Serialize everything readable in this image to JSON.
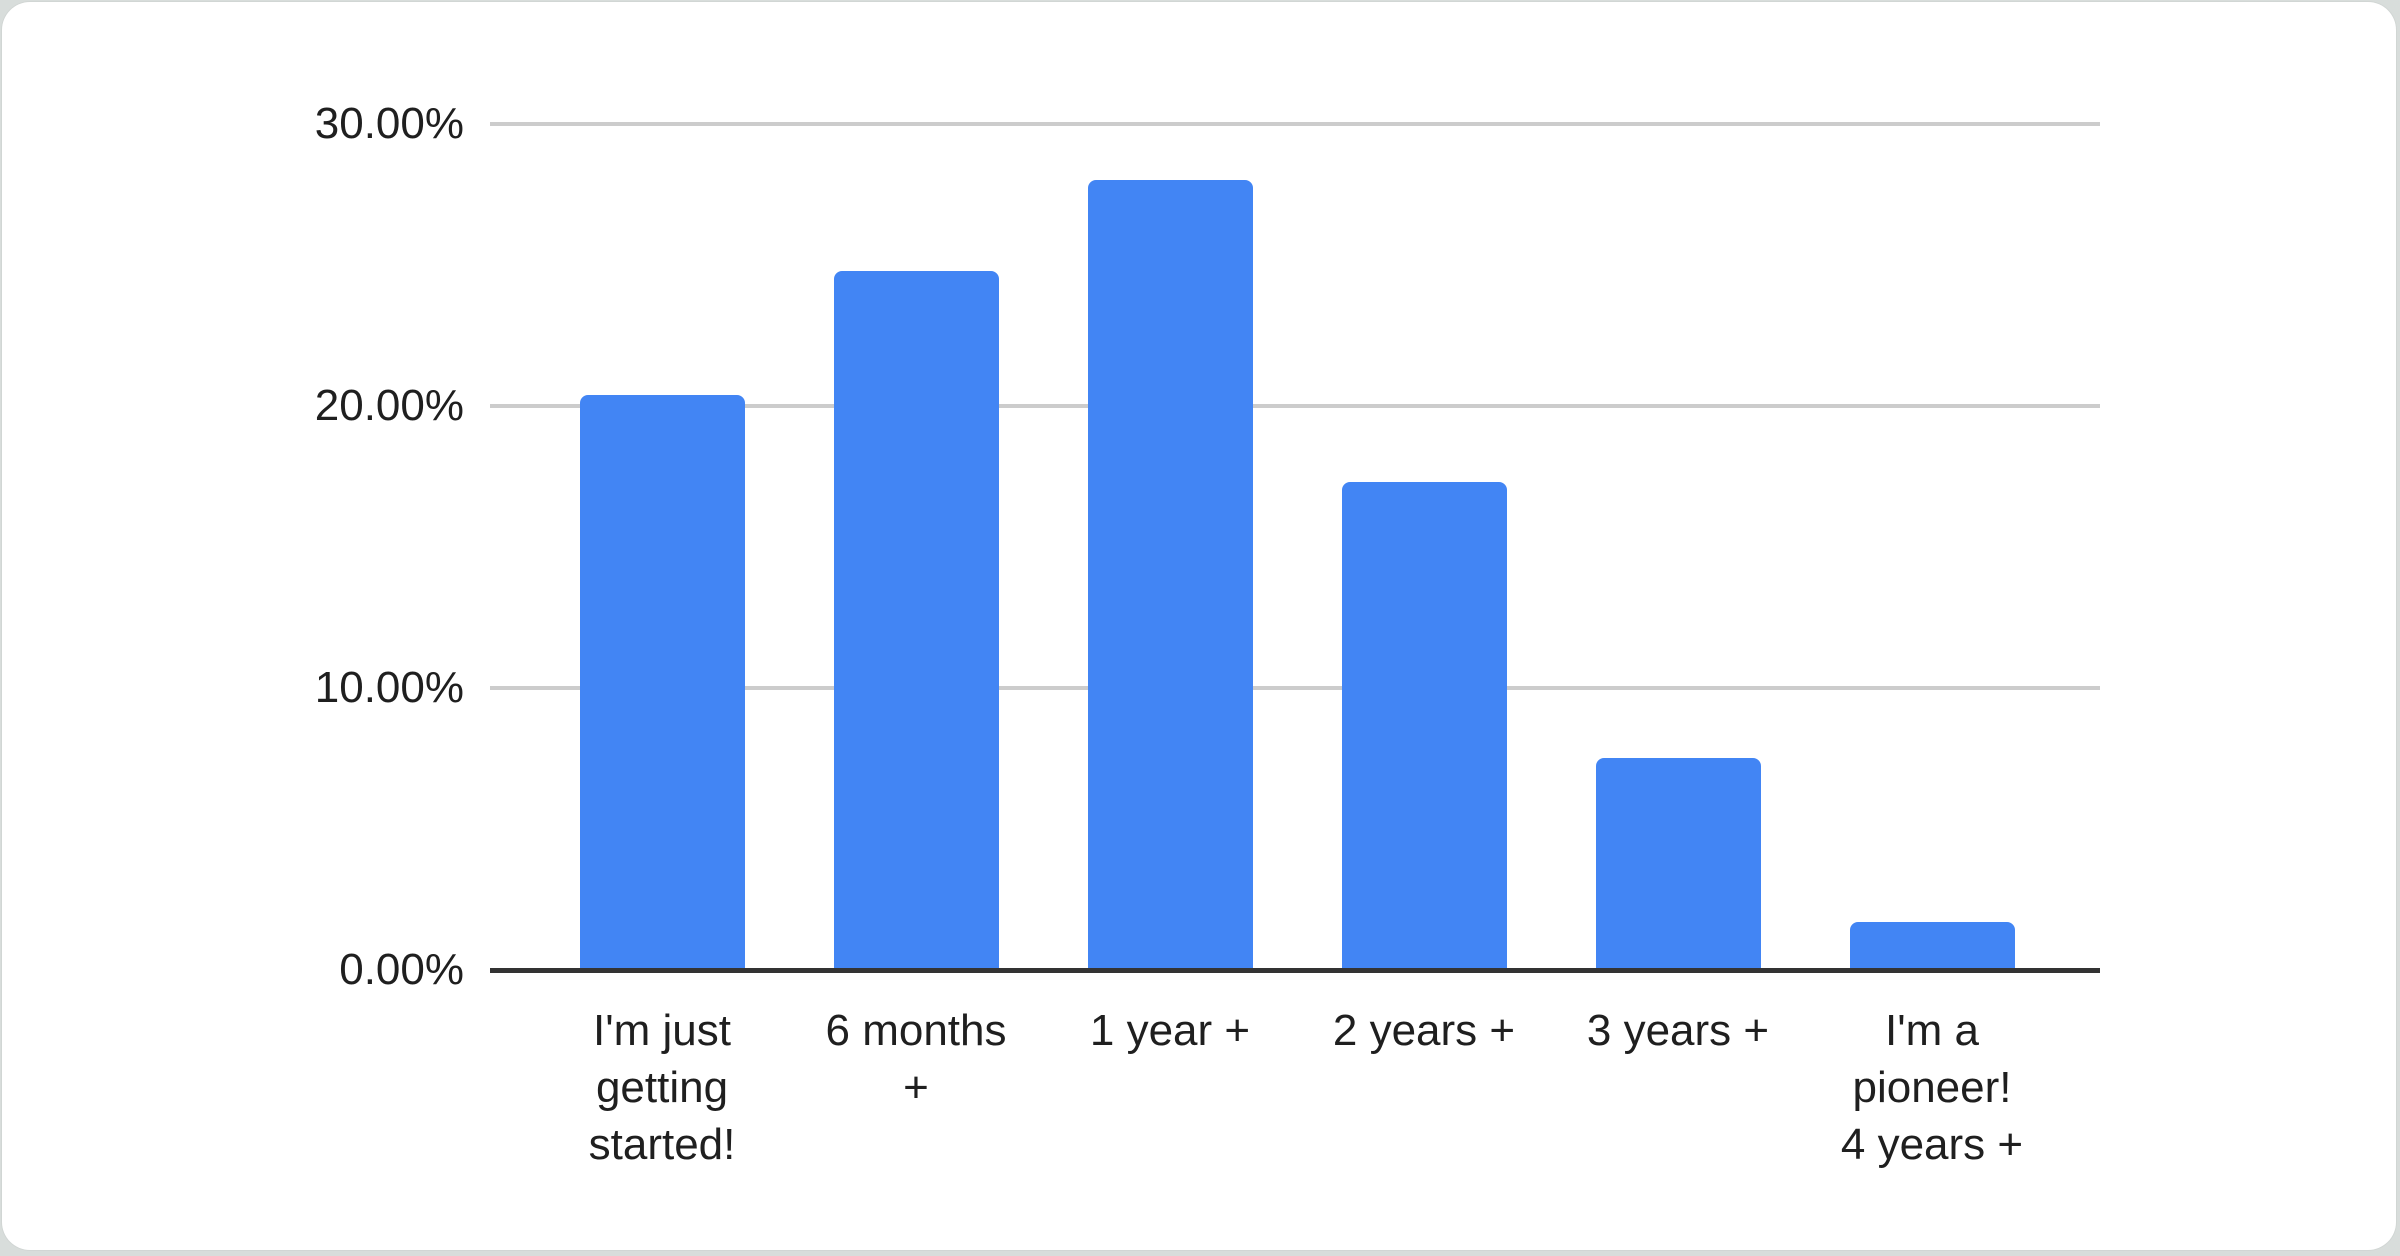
{
  "page": {
    "background_color": "#d8dddb",
    "card_background_color": "#ffffff"
  },
  "chart_data": {
    "type": "bar",
    "title": "",
    "categories": [
      "I'm just getting started!",
      "6 months +",
      "1 year +",
      "2 years +",
      "3 years +",
      "I'm a pioneer! 4 years +"
    ],
    "category_lines": [
      [
        "I'm just",
        "getting",
        "started!"
      ],
      [
        "6 months",
        "+"
      ],
      [
        "1 year +"
      ],
      [
        "2 years +"
      ],
      [
        "3 years +"
      ],
      [
        "I'm a",
        "pioneer!",
        "4 years +"
      ]
    ],
    "values": [
      20.4,
      24.8,
      28.0,
      17.3,
      7.5,
      1.7
    ],
    "unit": "%",
    "xlabel": "",
    "ylabel": "",
    "ylim": [
      0,
      30
    ],
    "yticks": [
      {
        "value": 0,
        "label": "0.00%"
      },
      {
        "value": 10,
        "label": "10.00%"
      },
      {
        "value": 20,
        "label": "20.00%"
      },
      {
        "value": 30,
        "label": "30.00%"
      }
    ],
    "grid": true,
    "legend_position": "none",
    "bar_color": "#4285f4",
    "gridline_color": "#cccccc",
    "axis_line_color": "#333333",
    "text_color": "#1f1f1f"
  }
}
